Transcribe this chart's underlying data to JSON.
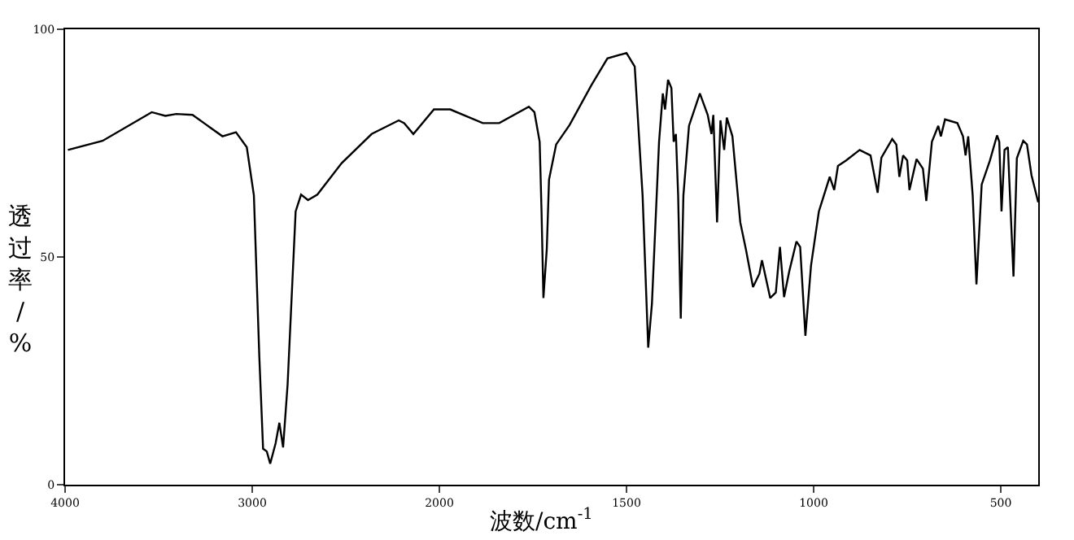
{
  "chart_data": [
    {
      "type": "line",
      "ylabel": "透过率/%",
      "x": [
        3985,
        3800,
        3537,
        3464,
        3406,
        3319,
        3159,
        3087,
        3029,
        2991,
        2962,
        2942,
        2922,
        2904,
        2875,
        2855,
        2835,
        2811,
        2768,
        2739,
        2702,
        2652,
        2522,
        2362,
        2217,
        2188,
        2139,
        2029,
        2000
      ],
      "values": [
        73.5,
        75.5,
        81.8,
        81,
        81.4,
        81.2,
        76.5,
        77.4,
        74.1,
        63.5,
        28,
        7.9,
        7.3,
        4.6,
        9.1,
        13.6,
        8.2,
        22,
        60,
        63.7,
        62.5,
        63.7,
        70.6,
        77,
        80,
        79.4,
        77,
        82.4,
        82.4
      ],
      "color": "#000000",
      "marker": "none",
      "line_style": "solid",
      "grid": false,
      "xlim": [
        4000,
        2000
      ],
      "xticks": [
        4000,
        3000,
        2000
      ],
      "ylim": [
        0,
        100
      ],
      "yticks": [
        0,
        50,
        100
      ]
    },
    {
      "type": "line",
      "xlabel": "波数/cm$^{-1}$",
      "x": [
        2000,
        1971,
        1884,
        1840,
        1761,
        1746,
        1732,
        1727,
        1722,
        1713,
        1707,
        1688,
        1652,
        1594,
        1551,
        1500,
        1478,
        1457,
        1442,
        1432,
        1413,
        1403,
        1397,
        1389,
        1380,
        1374,
        1368,
        1362,
        1355,
        1348,
        1333,
        1304,
        1283,
        1273,
        1268,
        1258,
        1249,
        1239,
        1232,
        1217,
        1196,
        1181,
        1162,
        1145,
        1138,
        1116,
        1101,
        1090,
        1079,
        1065,
        1046,
        1036,
        1022,
        1007,
        986,
        957,
        945,
        935,
        913,
        877,
        848,
        829,
        819,
        790,
        779,
        771,
        761,
        750,
        744,
        725,
        708,
        699,
        684,
        667,
        660,
        649,
        616,
        601,
        594,
        587,
        575,
        565,
        551,
        529,
        510,
        504,
        498,
        490,
        481,
        466,
        457,
        440,
        430,
        418,
        400
      ],
      "values": [
        82.4,
        82.4,
        79.4,
        79.4,
        83,
        81.8,
        75.3,
        60,
        41,
        51.7,
        67,
        74.7,
        79,
        87.7,
        93.6,
        94.8,
        91.8,
        63.5,
        30.1,
        39.8,
        75.3,
        85.9,
        82.4,
        88.9,
        87.1,
        75.3,
        77,
        63.5,
        36.5,
        63.5,
        78.8,
        85.9,
        81.2,
        77,
        81.2,
        57.6,
        80,
        73.5,
        80.6,
        76.5,
        57.6,
        51.7,
        43.4,
        46.3,
        49.3,
        41,
        42.2,
        52.2,
        41.2,
        46.9,
        53.4,
        52.2,
        32.7,
        48.1,
        60,
        67.6,
        64.7,
        70,
        71.2,
        73.5,
        72.3,
        64.1,
        71.8,
        75.9,
        74.7,
        67.6,
        72.3,
        71.2,
        64.7,
        71.5,
        69.4,
        62.3,
        75.3,
        78.8,
        76.5,
        80.2,
        79.4,
        76.5,
        72.3,
        76.5,
        63.5,
        44,
        65.9,
        71.2,
        76.7,
        75.3,
        60,
        73.5,
        74.1,
        45.7,
        71.7,
        75.5,
        74.7,
        68,
        62
      ],
      "color": "#000000",
      "marker": "none",
      "line_style": "solid",
      "grid": false,
      "xlim": [
        2000,
        400
      ],
      "xticks": [
        1500,
        1000,
        500
      ],
      "ylim": [
        0,
        100
      ],
      "tick_labels": "x"
    }
  ]
}
